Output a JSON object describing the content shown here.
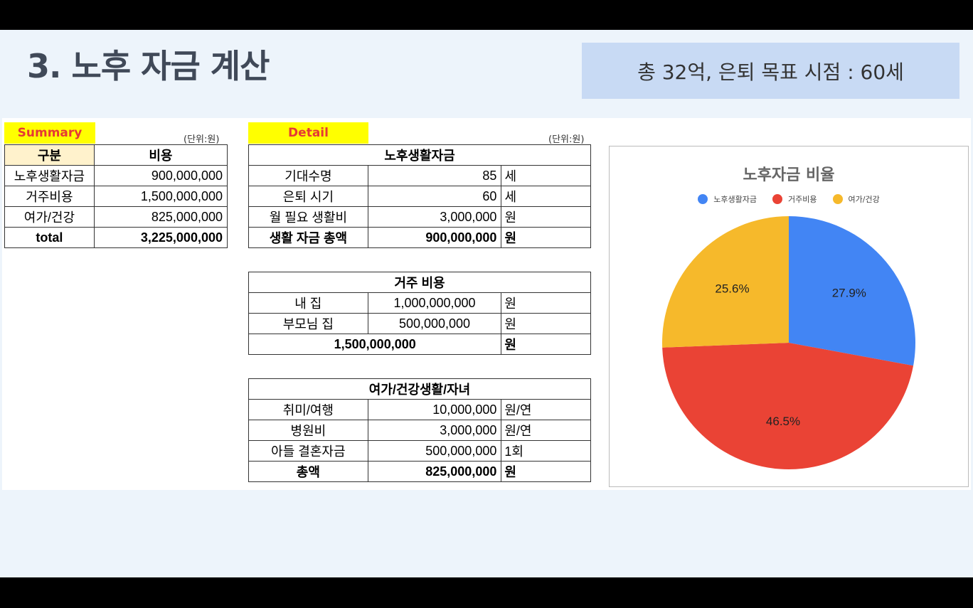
{
  "title": "3. 노후 자금 계산",
  "goal": "총 32억, 은퇴 목표 시점  : 60세",
  "summary": {
    "tag": "Summary",
    "unit": "(단위:원)",
    "headers": [
      "구분",
      "비용"
    ],
    "rows": [
      {
        "label": "노후생활자금",
        "value": "900,000,000"
      },
      {
        "label": "거주비용",
        "value": "1,500,000,000"
      },
      {
        "label": "여가/건강",
        "value": "825,000,000"
      }
    ],
    "total": {
      "label": "total",
      "value": "3,225,000,000"
    }
  },
  "detail": {
    "tag": "Detail",
    "unit": "(단위:원)",
    "living": {
      "header": "노후생활자금",
      "rows": [
        {
          "label": "기대수명",
          "value": "85",
          "unit": "세"
        },
        {
          "label": "은퇴 시기",
          "value": "60",
          "unit": "세"
        },
        {
          "label": "월 필요 생활비",
          "value": "3,000,000",
          "unit": "원"
        }
      ],
      "total": {
        "label": "생활 자금 총액",
        "value": "900,000,000",
        "unit": "원"
      }
    },
    "housing": {
      "header": "거주 비용",
      "rows": [
        {
          "label": "내 집",
          "value": "1,000,000,000",
          "unit": "원"
        },
        {
          "label": "부모님 집",
          "value": "500,000,000",
          "unit": "원"
        }
      ],
      "total": {
        "value": "1,500,000,000",
        "unit": "원"
      }
    },
    "leisure": {
      "header": "여가/건강생활/자녀",
      "rows": [
        {
          "label": "취미/여행",
          "value": "10,000,000",
          "unit": "원/연"
        },
        {
          "label": "병원비",
          "value": "3,000,000",
          "unit": "원/연"
        },
        {
          "label": "아들 결혼자금",
          "value": "500,000,000",
          "unit": "1회"
        }
      ],
      "total": {
        "label": "총액",
        "value": "825,000,000",
        "unit": "원"
      }
    }
  },
  "chart_data": {
    "type": "pie",
    "title": "노후자금 비율",
    "legend_placement": "top",
    "categories": [
      "노후생활자금",
      "거주비용",
      "여가/건강"
    ],
    "values": [
      27.9,
      46.5,
      25.6
    ],
    "labels": [
      "27.9%",
      "46.5%",
      "25.6%"
    ],
    "colors": [
      "#4285f4",
      "#ea4335",
      "#f6b92b"
    ]
  }
}
